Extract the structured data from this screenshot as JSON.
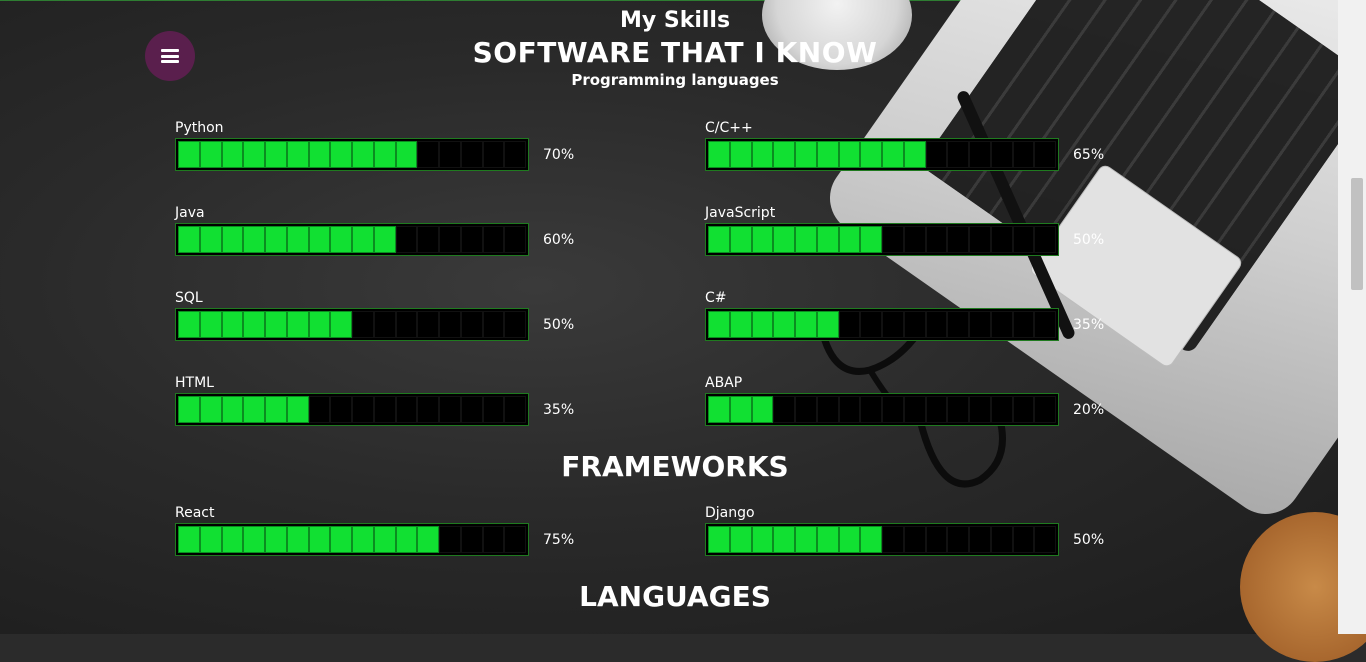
{
  "header": {
    "title": "My Skills",
    "section_software": "SOFTWARE THAT I KNOW",
    "subsection_programming": "Programming languages",
    "section_frameworks": "FRAMEWORKS",
    "section_languages": "LANGUAGES"
  },
  "menu": {
    "icon": "hamburger-icon"
  },
  "colors": {
    "bar_fill": "#11e032",
    "bar_border": "#1f7a1f",
    "menu_bg": "#5a1f4d"
  },
  "programming": [
    {
      "name": "Python",
      "percent": "70%",
      "level": 0.7
    },
    {
      "name": "C/C++",
      "percent": "65%",
      "level": 0.65
    },
    {
      "name": "Java",
      "percent": "60%",
      "level": 0.6
    },
    {
      "name": "JavaScript",
      "percent": "50%",
      "level": 0.5
    },
    {
      "name": "SQL",
      "percent": "50%",
      "level": 0.5
    },
    {
      "name": "C#",
      "percent": "35%",
      "level": 0.35
    },
    {
      "name": "HTML",
      "percent": "35%",
      "level": 0.35
    },
    {
      "name": "ABAP",
      "percent": "20%",
      "level": 0.2
    }
  ],
  "frameworks": [
    {
      "name": "React",
      "percent": "75%",
      "level": 0.75
    },
    {
      "name": "Django",
      "percent": "50%",
      "level": 0.5
    }
  ]
}
